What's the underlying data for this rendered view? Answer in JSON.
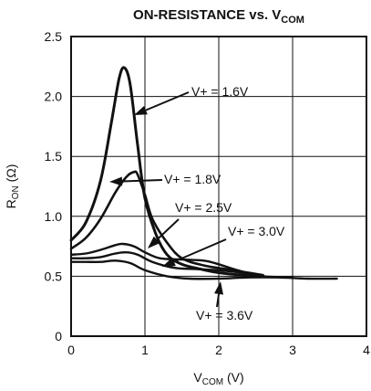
{
  "chart_data": {
    "type": "line",
    "title": "ON-RESISTANCE vs. V",
    "title_sub": "COM",
    "xlabel": "V",
    "xlabel_sub": "COM",
    "xlabel_unit": " (V)",
    "ylabel": "R",
    "ylabel_sub": "ON",
    "ylabel_unit": " (Ω)",
    "xlim": [
      0,
      4
    ],
    "ylim": [
      0,
      2.5
    ],
    "xticks": [
      0,
      1,
      2,
      3,
      4
    ],
    "xtick_labels": [
      "0",
      "1",
      "2",
      "3",
      "4"
    ],
    "yticks": [
      0,
      0.5,
      1.0,
      1.5,
      2.0,
      2.5
    ],
    "ytick_labels": [
      "0",
      "0.5",
      "1.0",
      "1.5",
      "2.0",
      "2.5"
    ],
    "grid": true,
    "series": [
      {
        "name": "V+ = 1.6V",
        "x": [
          0,
          0.2,
          0.4,
          0.55,
          0.65,
          0.72,
          0.8,
          0.9,
          1.0,
          1.15,
          1.3,
          1.5,
          1.75,
          2.0,
          2.3,
          2.5
        ],
        "y": [
          0.8,
          0.95,
          1.3,
          1.8,
          2.15,
          2.24,
          2.1,
          1.6,
          1.15,
          0.85,
          0.68,
          0.6,
          0.56,
          0.53,
          0.51,
          0.5
        ]
      },
      {
        "name": "V+ = 1.8V",
        "x": [
          0,
          0.2,
          0.4,
          0.6,
          0.75,
          0.85,
          0.9,
          1.0,
          1.1,
          1.3,
          1.5,
          1.8,
          2.1,
          2.4,
          2.6
        ],
        "y": [
          0.73,
          0.82,
          0.98,
          1.2,
          1.33,
          1.37,
          1.35,
          1.18,
          0.98,
          0.78,
          0.65,
          0.59,
          0.56,
          0.53,
          0.51
        ]
      },
      {
        "name": "V+ = 2.5V",
        "x": [
          0,
          0.2,
          0.4,
          0.6,
          0.7,
          0.85,
          1.0,
          1.2,
          1.5,
          1.8,
          2.0,
          2.2,
          2.5
        ],
        "y": [
          0.68,
          0.69,
          0.72,
          0.76,
          0.77,
          0.75,
          0.7,
          0.65,
          0.64,
          0.63,
          0.6,
          0.56,
          0.51
        ]
      },
      {
        "name": "V+ = 3.0V",
        "x": [
          0,
          0.2,
          0.4,
          0.6,
          0.75,
          0.9,
          1.1,
          1.4,
          1.7,
          2.0,
          2.3,
          2.6,
          3.0
        ],
        "y": [
          0.65,
          0.65,
          0.66,
          0.69,
          0.7,
          0.68,
          0.62,
          0.57,
          0.56,
          0.55,
          0.53,
          0.5,
          0.49
        ]
      },
      {
        "name": "V+ = 3.6V",
        "x": [
          0,
          0.2,
          0.4,
          0.6,
          0.8,
          1.0,
          1.3,
          1.6,
          2.0,
          2.4,
          2.8,
          3.2,
          3.6
        ],
        "y": [
          0.62,
          0.62,
          0.62,
          0.63,
          0.61,
          0.55,
          0.5,
          0.48,
          0.48,
          0.49,
          0.49,
          0.48,
          0.48
        ]
      }
    ]
  }
}
